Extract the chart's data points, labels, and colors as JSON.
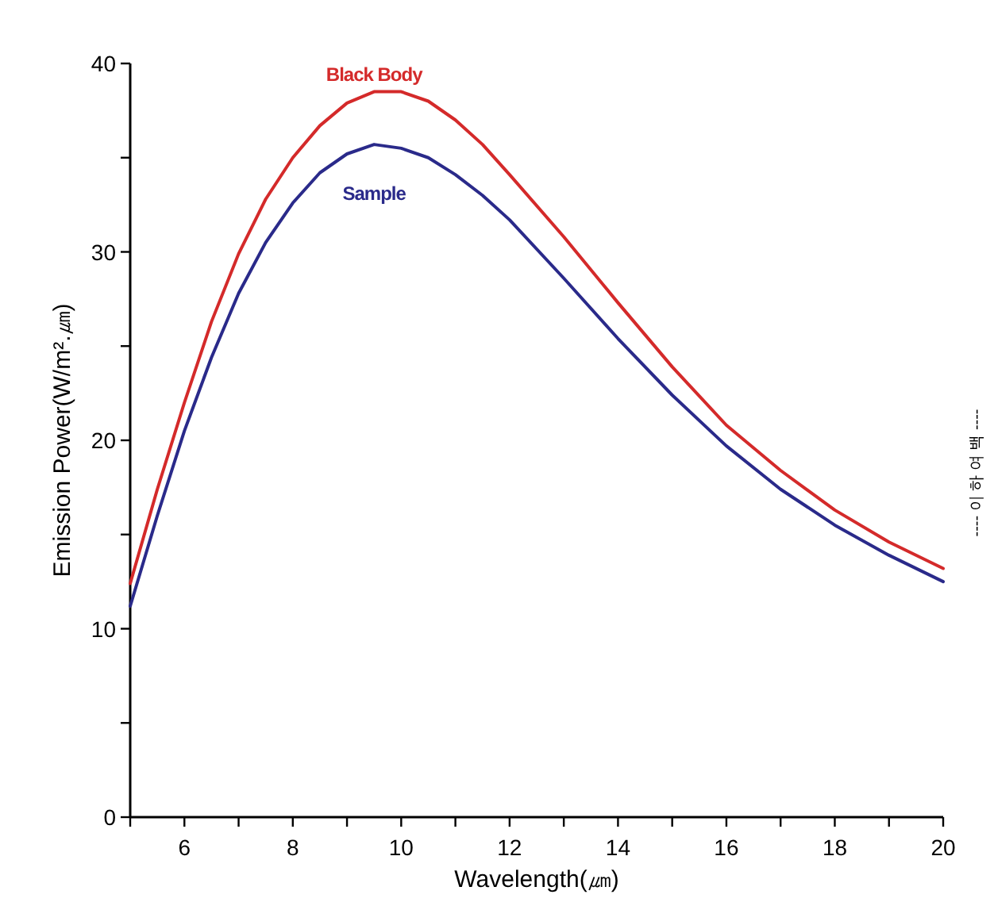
{
  "chart_data": {
    "type": "line",
    "xlabel": "Wavelength(㎛)",
    "ylabel": "Emission Power(W/m².㎛)",
    "x": [
      5,
      5.5,
      6,
      6.5,
      7,
      7.5,
      8,
      8.5,
      9,
      9.5,
      10,
      10.5,
      11,
      11.5,
      12,
      13,
      14,
      15,
      16,
      17,
      18,
      19,
      20
    ],
    "series": [
      {
        "name": "Black Body",
        "color": "#d42a2a",
        "values": [
          12.4,
          17.4,
          22.0,
          26.3,
          29.9,
          32.8,
          35.0,
          36.7,
          37.9,
          38.5,
          38.5,
          38.0,
          37.0,
          35.7,
          34.1,
          30.8,
          27.3,
          23.9,
          20.8,
          18.4,
          16.3,
          14.6,
          13.2
        ]
      },
      {
        "name": "Sample",
        "color": "#2a2a8a",
        "values": [
          11.2,
          16.0,
          20.5,
          24.4,
          27.8,
          30.5,
          32.6,
          34.2,
          35.2,
          35.7,
          35.5,
          35.0,
          34.1,
          33.0,
          31.7,
          28.6,
          25.4,
          22.4,
          19.7,
          17.4,
          15.5,
          13.9,
          12.5
        ]
      }
    ],
    "xlim": [
      5,
      20
    ],
    "ylim": [
      0,
      40
    ],
    "xticks": [
      {
        "value": 5,
        "label": null
      },
      6,
      {
        "value": 7,
        "label": null
      },
      8,
      {
        "value": 9,
        "label": null
      },
      10,
      {
        "value": 11,
        "label": null
      },
      12,
      {
        "value": 13,
        "label": null
      },
      14,
      {
        "value": 15,
        "label": null
      },
      16,
      {
        "value": 17,
        "label": null
      },
      18,
      {
        "value": 19,
        "label": null
      },
      20
    ],
    "yticks": [
      0,
      {
        "value": 5,
        "label": null
      },
      10,
      {
        "value": 15,
        "label": null
      },
      20,
      {
        "value": 25,
        "label": null
      },
      30,
      {
        "value": 35,
        "label": null
      },
      40
    ],
    "grid": false,
    "annotations": [
      "---- 이 하 여 백 ----"
    ]
  }
}
